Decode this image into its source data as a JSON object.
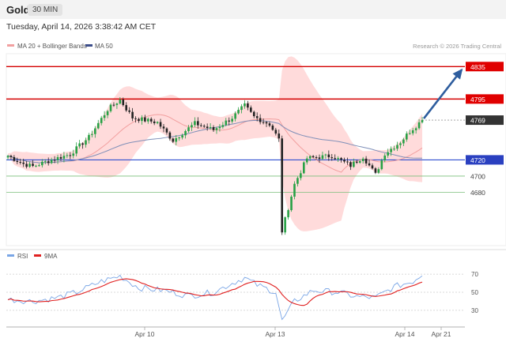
{
  "header": {
    "symbol": "Gold",
    "timeframe": "30 MIN",
    "datetime": "Tuesday, April 14, 2026 3:38:42 AM CET"
  },
  "legend": {
    "ma_bb": "MA 20 + Bollinger Bands",
    "ma50": "MA 50",
    "rsi": "RSI",
    "ma9": "9MA"
  },
  "credit": "Research © 2026 Trading Central",
  "colors": {
    "up": "#27a145",
    "down": "#222222",
    "bands": "#ffcfcf",
    "ma20": "#f2a0a0",
    "ma50": "#7f8fb8",
    "resistance": "#d40000",
    "support_major": "#3050d0",
    "support": "#7bbf7b",
    "arrow": "#2e5d9e",
    "rsi": "#7aa6e6",
    "rsi_ma": "#e02020",
    "current": "#333333"
  },
  "chart_data": [
    {
      "type": "candlestick",
      "title": "",
      "x_ticks": [
        "Apr 10",
        "Apr 13",
        "Apr 14",
        "Apr 21"
      ],
      "ylim": [
        4625,
        4845
      ],
      "current_price": 4769,
      "levels": [
        {
          "label": "4835",
          "value": 4835,
          "kind": "resistance"
        },
        {
          "label": "4795",
          "value": 4795,
          "kind": "resistance"
        },
        {
          "label": "4769",
          "value": 4769,
          "kind": "current"
        },
        {
          "label": "4720",
          "value": 4720,
          "kind": "support_major"
        },
        {
          "label": "4700",
          "value": 4700,
          "kind": "support"
        },
        {
          "label": "4680",
          "value": 4680,
          "kind": "support"
        }
      ],
      "forecast_target": 4835,
      "anchors": [
        {
          "i": 0,
          "v": 4725
        },
        {
          "i": 5,
          "v": 4715
        },
        {
          "i": 8,
          "v": 4712
        },
        {
          "i": 14,
          "v": 4720
        },
        {
          "i": 20,
          "v": 4727
        },
        {
          "i": 26,
          "v": 4748
        },
        {
          "i": 32,
          "v": 4782
        },
        {
          "i": 36,
          "v": 4794
        },
        {
          "i": 40,
          "v": 4772
        },
        {
          "i": 48,
          "v": 4766
        },
        {
          "i": 53,
          "v": 4744
        },
        {
          "i": 60,
          "v": 4765
        },
        {
          "i": 66,
          "v": 4757
        },
        {
          "i": 72,
          "v": 4772
        },
        {
          "i": 76,
          "v": 4787
        },
        {
          "i": 79,
          "v": 4773
        },
        {
          "i": 84,
          "v": 4764
        },
        {
          "i": 87,
          "v": 4745
        },
        {
          "i": 88,
          "v": 4632
        },
        {
          "i": 92,
          "v": 4690
        },
        {
          "i": 96,
          "v": 4722
        },
        {
          "i": 104,
          "v": 4725
        },
        {
          "i": 110,
          "v": 4713
        },
        {
          "i": 114,
          "v": 4724
        },
        {
          "i": 118,
          "v": 4702
        },
        {
          "i": 121,
          "v": 4728
        },
        {
          "i": 126,
          "v": 4742
        },
        {
          "i": 129,
          "v": 4755
        },
        {
          "i": 133,
          "v": 4769
        }
      ],
      "rsi": {
        "ticks": [
          70,
          50,
          30
        ],
        "ylim": [
          15,
          78
        ],
        "anchors": [
          {
            "i": 0,
            "v": 42
          },
          {
            "i": 8,
            "v": 40
          },
          {
            "i": 16,
            "v": 44
          },
          {
            "i": 22,
            "v": 50
          },
          {
            "i": 30,
            "v": 62
          },
          {
            "i": 36,
            "v": 68
          },
          {
            "i": 42,
            "v": 55
          },
          {
            "i": 50,
            "v": 52
          },
          {
            "i": 58,
            "v": 46
          },
          {
            "i": 66,
            "v": 50
          },
          {
            "i": 72,
            "v": 60
          },
          {
            "i": 76,
            "v": 66
          },
          {
            "i": 80,
            "v": 58
          },
          {
            "i": 86,
            "v": 50
          },
          {
            "i": 88,
            "v": 18
          },
          {
            "i": 92,
            "v": 40
          },
          {
            "i": 98,
            "v": 52
          },
          {
            "i": 106,
            "v": 50
          },
          {
            "i": 112,
            "v": 45
          },
          {
            "i": 118,
            "v": 44
          },
          {
            "i": 124,
            "v": 56
          },
          {
            "i": 130,
            "v": 62
          },
          {
            "i": 133,
            "v": 70
          }
        ]
      }
    }
  ]
}
